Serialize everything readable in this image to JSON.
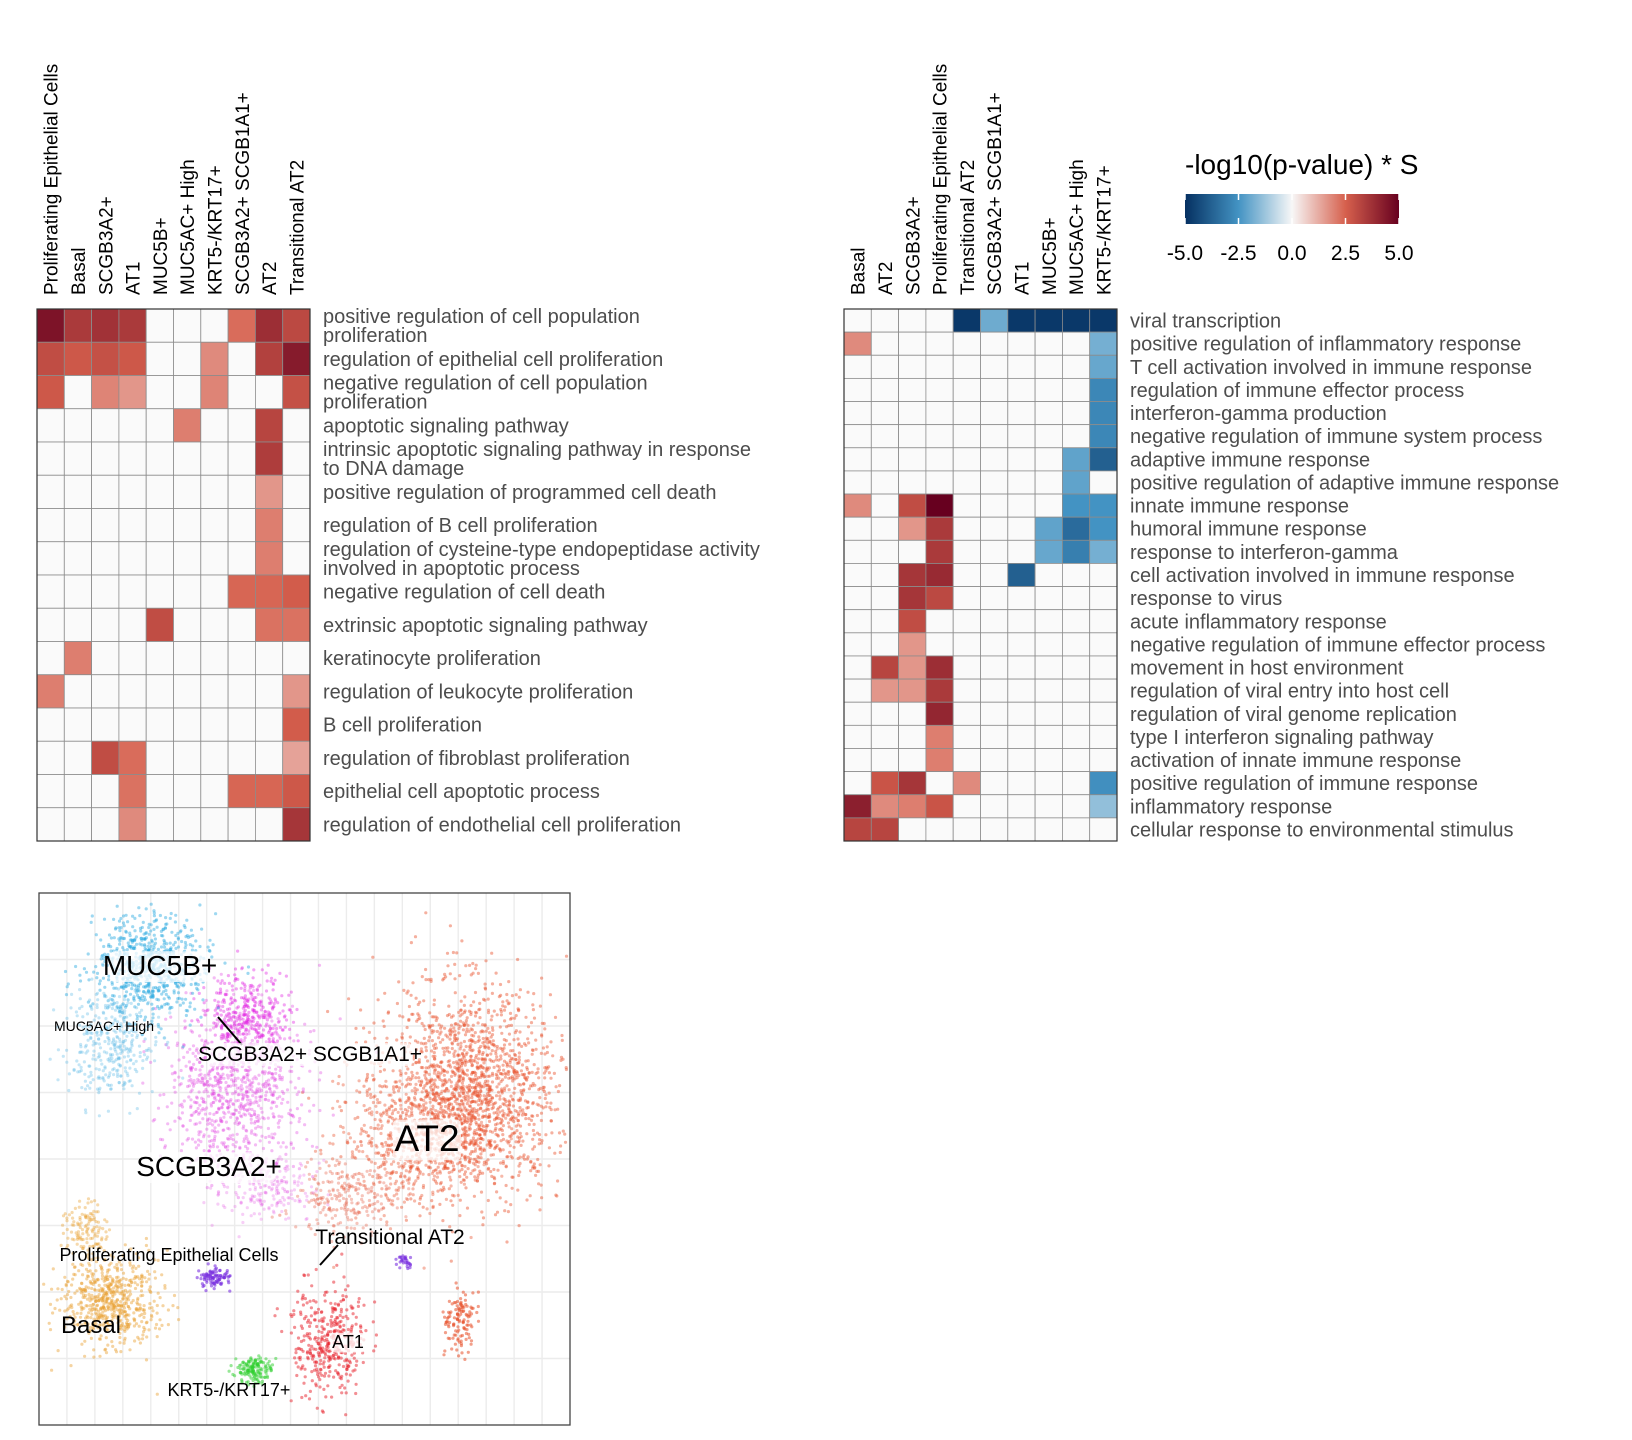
{
  "colors": {
    "neg_max": "#053061",
    "neg_mid": "#4393c3",
    "zero": "#f7f7f7",
    "pos_mid": "#d6604d",
    "pos_max": "#67001f",
    "empty_cell": "#fafafa",
    "grid": "#8c8c8c",
    "row_label": "#4d4d4d",
    "col_label": "#000000"
  },
  "legend": {
    "title": "-log10(p-value) * S",
    "ticks": [
      "-5.0",
      "-2.5",
      "0.0",
      "2.5",
      "5.0"
    ],
    "range": [
      -5,
      5
    ]
  },
  "chart_data": [
    {
      "type": "heatmap",
      "columns": [
        "Proliferating Epithelial Cells",
        "Basal",
        "SCGB3A2+",
        "AT1",
        "MUC5B+",
        "MUC5AC+ High",
        "KRT5-/KRT17+",
        "SCGB3A2+ SCGB1A1+",
        "AT2",
        "Transitional AT2"
      ],
      "rows": [
        [
          "positive regulation of cell population",
          "proliferation"
        ],
        [
          "regulation of epithelial cell proliferation"
        ],
        [
          "negative regulation of cell population",
          "proliferation"
        ],
        [
          "apoptotic signaling pathway"
        ],
        [
          "intrinsic apoptotic signaling pathway in response",
          "to DNA damage"
        ],
        [
          "positive regulation of programmed cell death"
        ],
        [
          "regulation of B cell proliferation"
        ],
        [
          "regulation of cysteine-type endopeptidase activity",
          "involved in apoptotic process"
        ],
        [
          "negative regulation of cell death"
        ],
        [
          "extrinsic apoptotic signaling pathway"
        ],
        [
          "keratinocyte proliferation"
        ],
        [
          "regulation of leukocyte proliferation"
        ],
        [
          "B cell proliferation"
        ],
        [
          "regulation of fibroblast proliferation"
        ],
        [
          "epithelial cell apoptotic process"
        ],
        [
          "regulation of endothelial cell proliferation"
        ]
      ],
      "values": [
        [
          4.5,
          3.5,
          3.7,
          3.5,
          null,
          null,
          null,
          2.3,
          3.8,
          3.1
        ],
        [
          3.0,
          2.7,
          2.9,
          2.7,
          null,
          null,
          1.8,
          null,
          3.3,
          4.3
        ],
        [
          2.7,
          null,
          1.9,
          1.6,
          null,
          null,
          1.9,
          null,
          null,
          2.9
        ],
        [
          null,
          null,
          null,
          null,
          null,
          2.0,
          null,
          null,
          3.2,
          null
        ],
        [
          null,
          null,
          null,
          null,
          null,
          null,
          null,
          null,
          3.4,
          null
        ],
        [
          null,
          null,
          null,
          null,
          null,
          null,
          null,
          null,
          1.6,
          null
        ],
        [
          null,
          null,
          null,
          null,
          null,
          null,
          null,
          null,
          2.0,
          null
        ],
        [
          null,
          null,
          null,
          null,
          null,
          null,
          null,
          null,
          2.0,
          null
        ],
        [
          null,
          null,
          null,
          null,
          null,
          null,
          null,
          2.4,
          2.4,
          2.6
        ],
        [
          null,
          null,
          null,
          null,
          3.0,
          null,
          null,
          null,
          2.2,
          2.2
        ],
        [
          null,
          2.0,
          null,
          null,
          null,
          null,
          null,
          null,
          null,
          null
        ],
        [
          2.0,
          null,
          null,
          null,
          null,
          null,
          null,
          null,
          null,
          1.6
        ],
        [
          null,
          null,
          null,
          null,
          null,
          null,
          null,
          null,
          null,
          2.6
        ],
        [
          null,
          null,
          3.0,
          2.3,
          null,
          null,
          null,
          null,
          null,
          1.4
        ],
        [
          null,
          null,
          null,
          2.2,
          null,
          null,
          null,
          2.4,
          2.4,
          2.7
        ],
        [
          null,
          null,
          null,
          1.8,
          null,
          null,
          null,
          null,
          null,
          3.6
        ]
      ]
    },
    {
      "type": "heatmap",
      "columns": [
        "Basal",
        "AT2",
        "SCGB3A2+",
        "Proliferating Epithelial Cells",
        "Transitional AT2",
        "SCGB3A2+ SCGB1A1+",
        "AT1",
        "MUC5B+",
        "MUC5AC+ High",
        "KRT5-/KRT17+"
      ],
      "rows": [
        [
          "viral transcription"
        ],
        [
          "positive regulation of inflammatory response"
        ],
        [
          "T cell activation involved in immune response"
        ],
        [
          "regulation of immune effector process"
        ],
        [
          "interferon-gamma production"
        ],
        [
          "negative regulation of immune system process"
        ],
        [
          "adaptive immune response"
        ],
        [
          "positive regulation of adaptive immune response"
        ],
        [
          "innate immune response"
        ],
        [
          "humoral immune response"
        ],
        [
          "response to interferon-gamma"
        ],
        [
          "cell activation involved in immune response"
        ],
        [
          "response to virus"
        ],
        [
          "acute inflammatory response"
        ],
        [
          "negative regulation of immune effector process"
        ],
        [
          "movement in host environment"
        ],
        [
          "regulation of viral entry into host cell"
        ],
        [
          "regulation of viral genome replication"
        ],
        [
          "type I interferon signaling pathway"
        ],
        [
          "activation of innate immune response"
        ],
        [
          "positive regulation of immune response"
        ],
        [
          "inflammatory response"
        ],
        [
          "cellular response to environmental stimulus"
        ]
      ],
      "values": [
        [
          null,
          null,
          null,
          null,
          -4.8,
          -1.9,
          -4.8,
          -4.8,
          -4.8,
          -4.8
        ],
        [
          1.8,
          null,
          null,
          null,
          null,
          null,
          null,
          null,
          null,
          -1.8
        ],
        [
          null,
          null,
          null,
          null,
          null,
          null,
          null,
          null,
          null,
          -2.0
        ],
        [
          null,
          null,
          null,
          null,
          null,
          null,
          null,
          null,
          null,
          -2.8
        ],
        [
          null,
          null,
          null,
          null,
          null,
          null,
          null,
          null,
          null,
          -2.8
        ],
        [
          null,
          null,
          null,
          null,
          null,
          null,
          null,
          null,
          null,
          -2.8
        ],
        [
          null,
          null,
          null,
          null,
          null,
          null,
          null,
          null,
          -2.1,
          -3.8
        ],
        [
          null,
          null,
          null,
          null,
          null,
          null,
          null,
          null,
          -2.1,
          null
        ],
        [
          1.8,
          null,
          3.0,
          5.0,
          null,
          null,
          null,
          null,
          -2.5,
          -2.5
        ],
        [
          null,
          null,
          1.6,
          3.5,
          null,
          null,
          null,
          -2.1,
          -3.5,
          -2.5
        ],
        [
          null,
          null,
          null,
          3.5,
          null,
          null,
          null,
          -2.0,
          -3.0,
          -1.8
        ],
        [
          null,
          null,
          3.6,
          3.9,
          null,
          null,
          -3.8,
          null,
          null,
          null
        ],
        [
          null,
          null,
          3.6,
          3.1,
          null,
          null,
          null,
          null,
          null,
          null
        ],
        [
          null,
          null,
          3.0,
          null,
          null,
          null,
          null,
          null,
          null,
          null
        ],
        [
          null,
          null,
          1.6,
          null,
          null,
          null,
          null,
          null,
          null,
          null
        ],
        [
          null,
          3.2,
          1.6,
          3.8,
          null,
          null,
          null,
          null,
          null,
          null
        ],
        [
          null,
          1.6,
          1.6,
          3.5,
          null,
          null,
          null,
          null,
          null,
          null
        ],
        [
          null,
          null,
          null,
          4.0,
          null,
          null,
          null,
          null,
          null,
          null
        ],
        [
          null,
          null,
          null,
          2.0,
          null,
          null,
          null,
          null,
          null,
          null
        ],
        [
          null,
          null,
          null,
          2.0,
          null,
          null,
          null,
          null,
          null,
          null
        ],
        [
          null,
          2.8,
          3.6,
          null,
          1.8,
          null,
          null,
          null,
          null,
          -2.6
        ],
        [
          4.2,
          1.8,
          2.0,
          2.8,
          null,
          null,
          null,
          null,
          null,
          -1.4
        ],
        [
          3.2,
          3.2,
          null,
          null,
          null,
          null,
          null,
          null,
          null,
          null
        ]
      ]
    },
    {
      "type": "scatter",
      "description_labels": [
        "MUC5B+",
        "MUC5AC+ High",
        "SCGB3A2+ SCGB1A1+",
        "AT2",
        "SCGB3A2+",
        "Proliferating Epithelial Cells",
        "Transitional AT2",
        "Basal",
        "AT1",
        "KRT5-/KRT17+"
      ],
      "clusters": [
        {
          "name": "MUC5B+",
          "color": "#29a9e0"
        },
        {
          "name": "MUC5AC+ High",
          "color": "#5ab8e6"
        },
        {
          "name": "SCGB3A2+ SCGB1A1+",
          "color": "#e020e0"
        },
        {
          "name": "SCGB3A2+",
          "color": "#e040e0"
        },
        {
          "name": "AT2",
          "color": "#e8502a"
        },
        {
          "name": "Transitional AT2",
          "color": "#e45a40"
        },
        {
          "name": "AT1",
          "color": "#e8202a"
        },
        {
          "name": "Basal",
          "color": "#e8a030"
        },
        {
          "name": "Proliferating Epithelial Cells",
          "color": "#7a30e0"
        },
        {
          "name": "KRT5-/KRT17+",
          "color": "#30d030"
        }
      ]
    }
  ]
}
